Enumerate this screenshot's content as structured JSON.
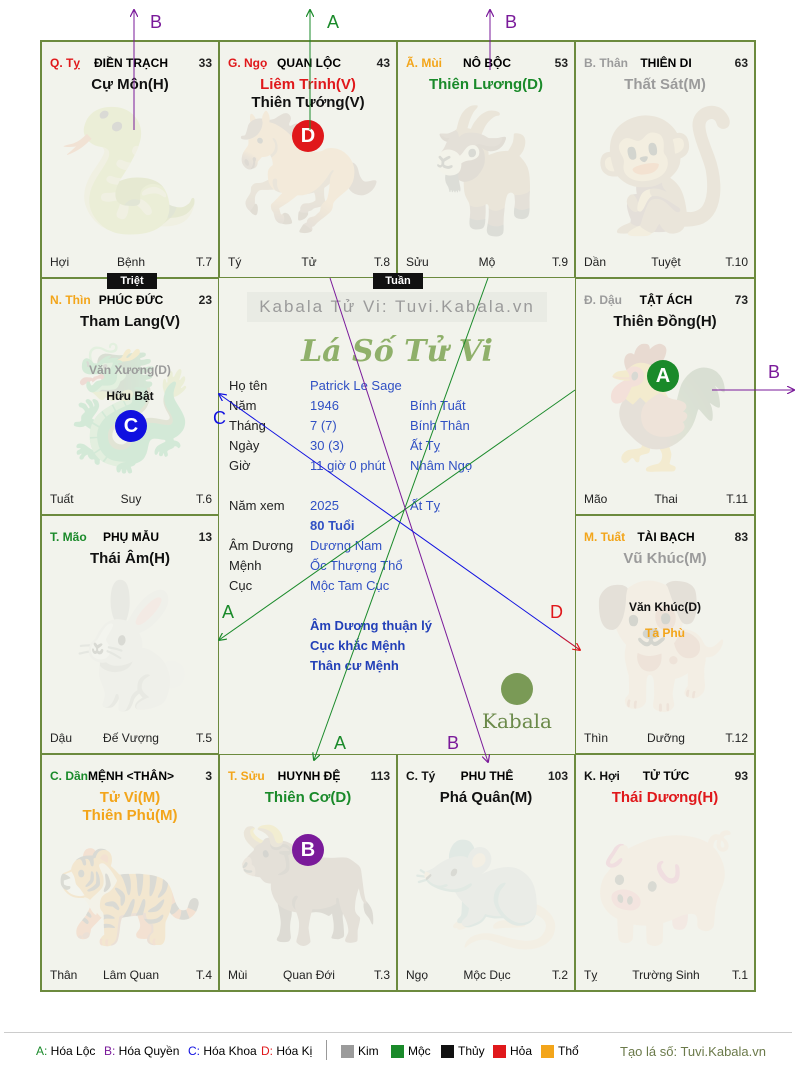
{
  "palaces": [
    {
      "id": "ty",
      "can": "Q. Tỵ",
      "can_color": "#e0181b",
      "name": "ĐIỀN TRẠCH",
      "age": "33",
      "stars": [
        {
          "t": "Cự Môn(H)",
          "c": "thuy"
        }
      ],
      "minors": [],
      "foot": [
        "Hợi",
        "Bệnh",
        "T.7"
      ],
      "animal": "snake"
    },
    {
      "id": "ngo",
      "can": "G. Ngọ",
      "can_color": "#e0181b",
      "name": "QUAN LỘC",
      "age": "43",
      "stars": [
        {
          "t": "Liêm Trinh(V)",
          "c": "hoa"
        },
        {
          "t": "Thiên Tướng(V)",
          "c": "thuy"
        }
      ],
      "minors": [],
      "foot": [
        "Tý",
        "Tử",
        "T.8"
      ],
      "animal": "horse"
    },
    {
      "id": "mui",
      "can": "Ã. Mùi",
      "can_color": "#f3a51a",
      "name": "NÔ BỘC",
      "age": "53",
      "stars": [
        {
          "t": "Thiên Lương(D)",
          "c": "moc"
        }
      ],
      "minors": [],
      "foot": [
        "Sửu",
        "Mộ",
        "T.9"
      ],
      "animal": "goat"
    },
    {
      "id": "than",
      "can": "B. Thân",
      "can_color": "#9b9b9b",
      "name": "THIÊN DI",
      "age": "63",
      "stars": [
        {
          "t": "Thất Sát(M)",
          "c": "kim"
        }
      ],
      "minors": [],
      "foot": [
        "Dần",
        "Tuyệt",
        "T.10"
      ],
      "animal": "monkey"
    },
    {
      "id": "thin",
      "can": "N. Thìn",
      "can_color": "#f3a51a",
      "name": "PHÚC ĐỨC",
      "age": "23",
      "stars": [
        {
          "t": "Tham Lang(V)",
          "c": "thuy"
        }
      ],
      "minors": [
        {
          "t": "Văn Xương(D)",
          "c": "kim"
        },
        {
          "t": "Hữu Bật",
          "c": "thuy"
        }
      ],
      "foot": [
        "Tuất",
        "Suy",
        "T.6"
      ],
      "animal": "dragon"
    },
    {
      "id": "dau",
      "can": "Đ. Dậu",
      "can_color": "#9b9b9b",
      "name": "TẬT ÁCH",
      "age": "73",
      "stars": [
        {
          "t": "Thiên Đồng(H)",
          "c": "thuy"
        }
      ],
      "minors": [],
      "foot": [
        "Mão",
        "Thai",
        "T.11"
      ],
      "animal": "rooster"
    },
    {
      "id": "mao",
      "can": "T. Mão",
      "can_color": "#1a8a2a",
      "name": "PHỤ MẪU",
      "age": "13",
      "stars": [
        {
          "t": "Thái Âm(H)",
          "c": "thuy"
        }
      ],
      "minors": [],
      "foot": [
        "Dậu",
        "Đế Vượng",
        "T.5"
      ],
      "animal": "rabbit"
    },
    {
      "id": "tuat",
      "can": "M. Tuất",
      "can_color": "#f3a51a",
      "name": "TÀI BẠCH",
      "age": "83",
      "stars": [
        {
          "t": "Vũ Khúc(M)",
          "c": "kim"
        }
      ],
      "minors": [
        {
          "t": "Văn Khúc(D)",
          "c": "thuy"
        },
        {
          "t": "Tả Phù",
          "c": "tho"
        }
      ],
      "foot": [
        "Thìn",
        "Dưỡng",
        "T.12"
      ],
      "animal": "dog"
    },
    {
      "id": "dan",
      "can": "C. Dần",
      "can_color": "#1a8a2a",
      "name": "MỆNH <THÂN>",
      "age": "3",
      "stars": [
        {
          "t": "Tử Vi(M)",
          "c": "tho"
        },
        {
          "t": "Thiên Phủ(M)",
          "c": "tho"
        }
      ],
      "minors": [],
      "foot": [
        "Thân",
        "Lâm Quan",
        "T.4"
      ],
      "animal": "tiger"
    },
    {
      "id": "suu",
      "can": "T. Sửu",
      "can_color": "#f3a51a",
      "name": "HUYNH ĐỆ",
      "age": "113",
      "stars": [
        {
          "t": "Thiên Cơ(D)",
          "c": "moc"
        }
      ],
      "minors": [],
      "foot": [
        "Mùi",
        "Quan Đới",
        "T.3"
      ],
      "animal": "ox"
    },
    {
      "id": "tyrat",
      "can": "C. Tý",
      "can_color": "#111111",
      "name": "PHU THÊ",
      "age": "103",
      "stars": [
        {
          "t": "Phá Quân(M)",
          "c": "thuy"
        }
      ],
      "minors": [],
      "foot": [
        "Ngọ",
        "Mộc Dục",
        "T.2"
      ],
      "animal": "rat"
    },
    {
      "id": "hoi",
      "can": "K. Hợi",
      "can_color": "#111111",
      "name": "TỬ TỨC",
      "age": "93",
      "stars": [
        {
          "t": "Thái Dương(H)",
          "c": "hoa"
        }
      ],
      "minors": [],
      "foot": [
        "Tỵ",
        "Trường Sinh",
        "T.1"
      ],
      "animal": "pig"
    }
  ],
  "tags": {
    "triet": "Triệt",
    "tuan": "Tuần"
  },
  "badges": [
    {
      "letter": "D",
      "color": "#e0181b"
    },
    {
      "letter": "A",
      "color": "#1a8a2a"
    },
    {
      "letter": "C",
      "color": "#1010e0"
    },
    {
      "letter": "B",
      "color": "#7a1a9a"
    }
  ],
  "center": {
    "site": "Kabala Tử Vi: Tuvi.Kabala.vn",
    "logo": "Lá Số Tử Vi",
    "rows": [
      {
        "lab": "Họ tên",
        "v1": "Patrick Le Sage",
        "v2": ""
      },
      {
        "lab": "Năm",
        "v1": "1946",
        "v2": "Bính Tuất"
      },
      {
        "lab": "Tháng",
        "v1": "7  (7)",
        "v2": "Bính Thân"
      },
      {
        "lab": "Ngày",
        "v1": "30  (3)",
        "v2": "Ất Tỵ"
      },
      {
        "lab": "Giờ",
        "v1": "11 giờ 0 phút",
        "v2": "Nhâm Ngọ"
      },
      {
        "lab": "Năm xem",
        "v1": "2025",
        "v2": "Ất Tỵ"
      },
      {
        "lab": "",
        "v1": "80 Tuổi",
        "v2": ""
      },
      {
        "lab": "Âm Dương",
        "v1": "Dương Nam",
        "v2": ""
      },
      {
        "lab": "Mệnh",
        "v1": "Ốc Thượng Thổ",
        "v2": ""
      },
      {
        "lab": "Cục",
        "v1": "Mộc Tam Cục",
        "v2": ""
      }
    ],
    "notes": [
      "Âm Dương thuận lý",
      "Cục khắc Mệnh",
      "Thân cư Mệnh"
    ],
    "brand": "Kabala"
  },
  "arrow_labels": {
    "A": "A",
    "B": "B",
    "C": "C",
    "D": "D"
  },
  "legend": {
    "items": [
      {
        "key": "A:",
        "label": "Hóa Lộc",
        "color": "#1a8a2a"
      },
      {
        "key": "B:",
        "label": "Hóa Quyền",
        "color": "#7a1a9a"
      },
      {
        "key": "C:",
        "label": "Hóa Khoa",
        "color": "#1010e0"
      },
      {
        "key": "D:",
        "label": "Hóa Kị",
        "color": "#e0181b"
      }
    ],
    "elements": [
      {
        "label": "Kim",
        "color": "#9b9b9b"
      },
      {
        "label": "Mộc",
        "color": "#1a8a2a"
      },
      {
        "label": "Thủy",
        "color": "#111111"
      },
      {
        "label": "Hỏa",
        "color": "#e0181b"
      },
      {
        "label": "Thổ",
        "color": "#f3a51a"
      }
    ],
    "credit": "Tạo lá số: Tuvi.Kabala.vn"
  }
}
